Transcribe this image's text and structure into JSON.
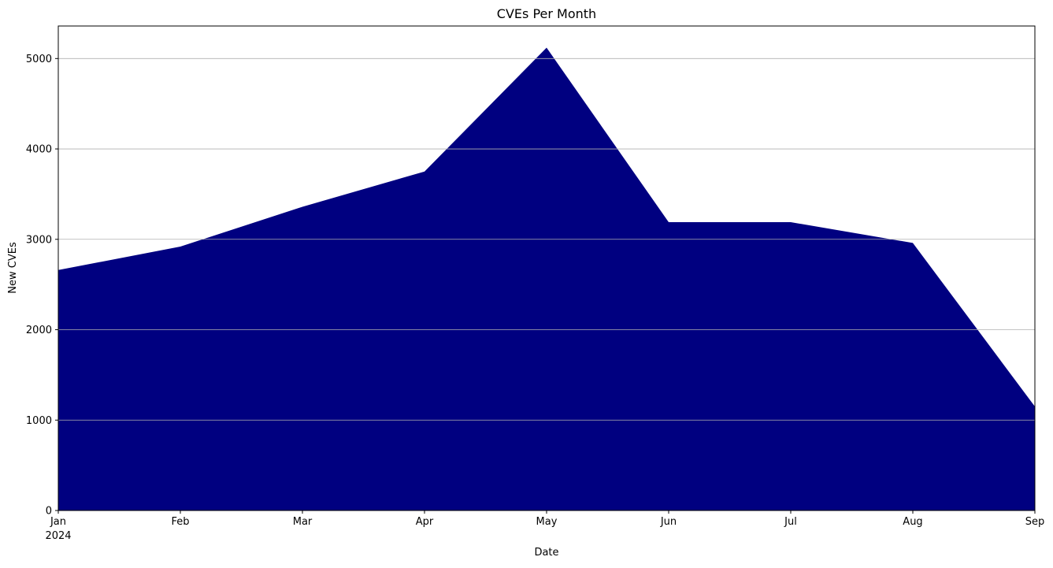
{
  "chart_data": {
    "type": "area",
    "title": "CVEs Per Month",
    "xlabel": "Date",
    "ylabel": "New CVEs",
    "x_year_label": "2024",
    "categories": [
      "Jan",
      "Feb",
      "Mar",
      "Apr",
      "May",
      "Jun",
      "Jul",
      "Aug",
      "Sep"
    ],
    "x": [
      "2024-01",
      "2024-02",
      "2024-03",
      "2024-04",
      "2024-05",
      "2024-06",
      "2024-07",
      "2024-08",
      "2024-09"
    ],
    "series": [
      {
        "values": [
          2660,
          2920,
          3360,
          3750,
          5120,
          3190,
          3190,
          2960,
          1150
        ],
        "color": "#000080"
      }
    ],
    "ylim": [
      0,
      5360
    ],
    "yticks": [
      0,
      1000,
      2000,
      3000,
      4000,
      5000
    ],
    "grid": "y",
    "grid_color": "#b0b0b0",
    "legend": "none"
  }
}
